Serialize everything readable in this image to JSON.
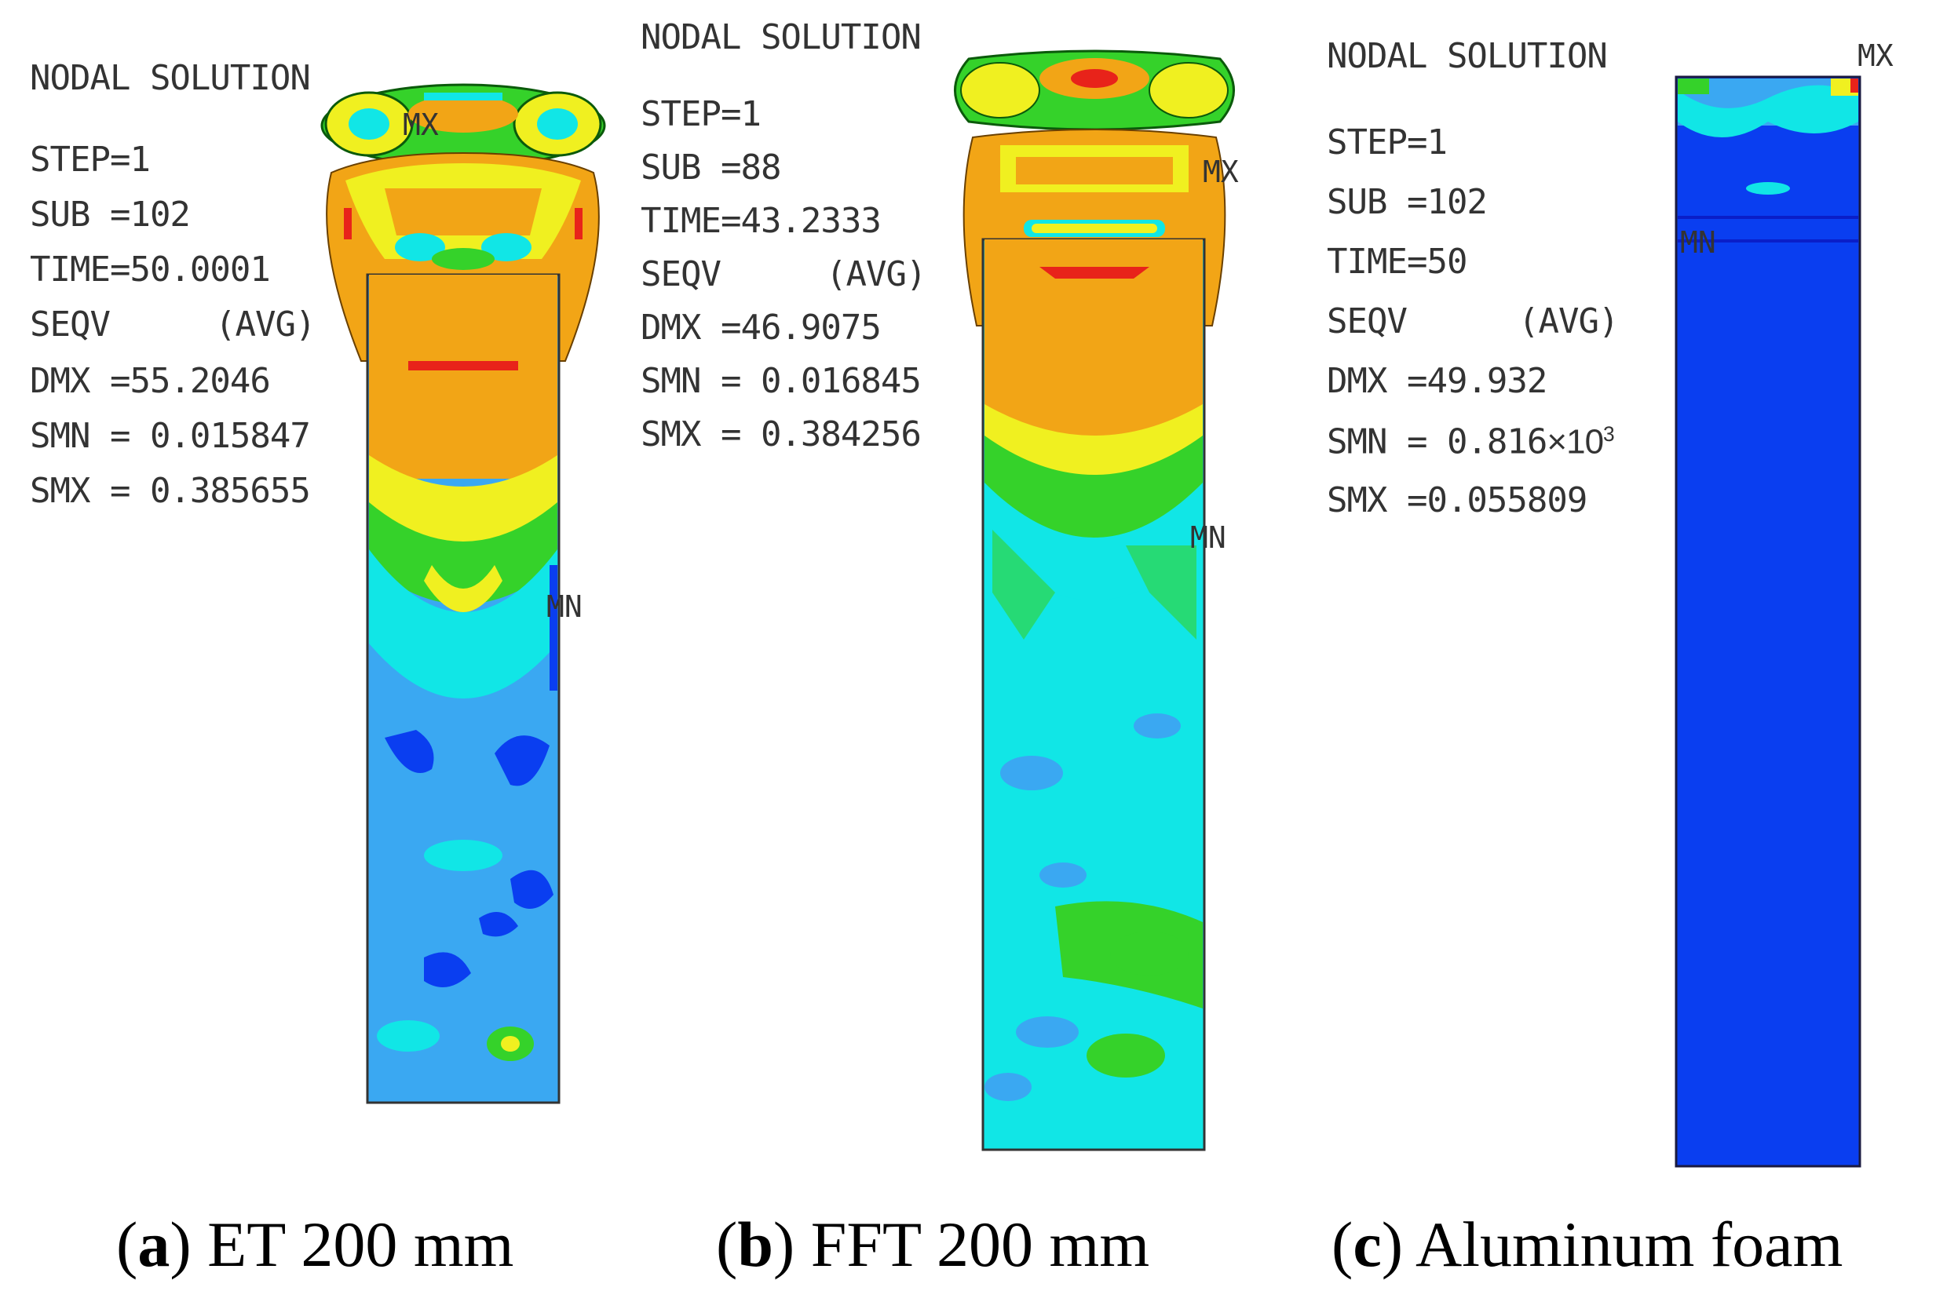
{
  "panels": [
    {
      "heading": "NODAL SOLUTION",
      "step": "STEP=1",
      "sub": "SUB =102",
      "time": "TIME=50.0001",
      "seqv": "SEQV",
      "avg": "(AVG)",
      "dmx": "DMX =55.2046",
      "smn": "SMN = 0.015847",
      "smx": "SMX = 0.385655",
      "mx_tag": "MX",
      "mn_tag": "MN",
      "caption_letter": "a",
      "caption_text": "ET 200 mm"
    },
    {
      "heading": "NODAL SOLUTION",
      "step": "STEP=1",
      "sub": "SUB =88",
      "time": "TIME=43.2333",
      "seqv": "SEQV",
      "avg": "(AVG)",
      "dmx": "DMX =46.9075",
      "smn": "SMN = 0.016845",
      "smx": "SMX = 0.384256",
      "mx_tag": "MX",
      "mn_tag": "MN",
      "caption_letter": "b",
      "caption_text": "FFT 200 mm"
    },
    {
      "heading": "NODAL SOLUTION",
      "step": "STEP=1",
      "sub": "SUB =102",
      "time": "TIME=50",
      "seqv": "SEQV",
      "avg": "(AVG)",
      "dmx": "DMX =49.932",
      "smn_prefix": "SMN = 0.816",
      "smn_suffix": "×10",
      "smn_exp": "3",
      "smx": "SMX =0.055809",
      "mx_tag": "MX",
      "mn_tag": "MN",
      "caption_letter": "c",
      "caption_text": "Aluminum foam"
    }
  ],
  "colors": {
    "red": "#e8231a",
    "orange": "#f2a516",
    "yellow": "#f0f020",
    "green": "#35d22a",
    "cyan": "#11e6e6",
    "lightblue": "#3aa8f2",
    "blue": "#0a3ef0",
    "darkblue": "#0a1ec8"
  }
}
